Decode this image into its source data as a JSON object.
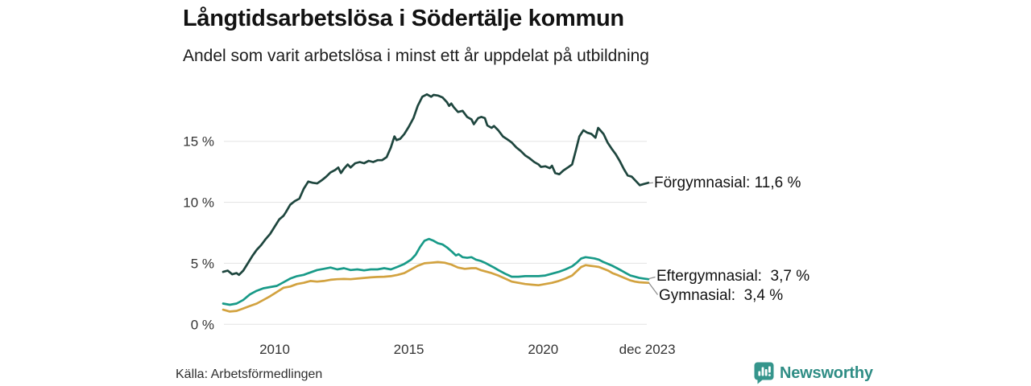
{
  "header": {
    "title": "Långtidsarbetslösa i Södertälje kommun",
    "subtitle": "Andel som varit arbetslösa i minst ett år uppdelat på utbildning"
  },
  "footer": {
    "source": "Källa: Arbetsförmedlingen",
    "brand": "Newsworthy",
    "brand_color": "#2f8d85",
    "brand_icon": "bar-chart-speech-bubble"
  },
  "chart_data": {
    "type": "line",
    "title": "Långtidsarbetslösa i Södertälje kommun",
    "subtitle": "Andel som varit arbetslösa i minst ett år uppdelat på utbildning",
    "x_unit": "decimal year (monthly samples)",
    "x_range": [
      2008.08,
      2023.92
    ],
    "y_unit": "percent",
    "ylim": [
      0,
      19.5
    ],
    "grid": "horizontal",
    "gridline_color": "#e3e3e3",
    "legend_position": "end-of-line-labels",
    "y_ticks": [
      {
        "value": 0,
        "label": "0 %"
      },
      {
        "value": 5,
        "label": "5 %"
      },
      {
        "value": 10,
        "label": "10 %"
      },
      {
        "value": 15,
        "label": "15 %"
      }
    ],
    "x_ticks": [
      {
        "value": 2010,
        "label": "2010"
      },
      {
        "value": 2015,
        "label": "2015"
      },
      {
        "value": 2020,
        "label": "2020"
      },
      {
        "value": 2023.88,
        "label": "dec 2023"
      }
    ],
    "series": [
      {
        "name": "Förgymnasial",
        "color": "#1e463e",
        "end_value": 11.6,
        "points": [
          [
            2008.08,
            4.3
          ],
          [
            2008.25,
            4.4
          ],
          [
            2008.42,
            4.1
          ],
          [
            2008.58,
            4.2
          ],
          [
            2008.67,
            4.05
          ],
          [
            2008.83,
            4.4
          ],
          [
            2009.0,
            5.0
          ],
          [
            2009.17,
            5.6
          ],
          [
            2009.33,
            6.1
          ],
          [
            2009.5,
            6.5
          ],
          [
            2009.67,
            7.0
          ],
          [
            2009.83,
            7.4
          ],
          [
            2010.0,
            8.0
          ],
          [
            2010.17,
            8.6
          ],
          [
            2010.33,
            8.9
          ],
          [
            2010.42,
            9.2
          ],
          [
            2010.58,
            9.8
          ],
          [
            2010.75,
            10.1
          ],
          [
            2010.92,
            10.3
          ],
          [
            2011.08,
            11.1
          ],
          [
            2011.25,
            11.7
          ],
          [
            2011.42,
            11.6
          ],
          [
            2011.58,
            11.55
          ],
          [
            2011.75,
            11.8
          ],
          [
            2011.92,
            12.1
          ],
          [
            2012.08,
            12.45
          ],
          [
            2012.25,
            12.65
          ],
          [
            2012.37,
            12.85
          ],
          [
            2012.47,
            12.4
          ],
          [
            2012.58,
            12.75
          ],
          [
            2012.72,
            13.1
          ],
          [
            2012.83,
            12.85
          ],
          [
            2013.0,
            13.2
          ],
          [
            2013.17,
            13.3
          ],
          [
            2013.33,
            13.2
          ],
          [
            2013.5,
            13.4
          ],
          [
            2013.67,
            13.3
          ],
          [
            2013.83,
            13.45
          ],
          [
            2014.0,
            13.45
          ],
          [
            2014.17,
            13.7
          ],
          [
            2014.33,
            14.5
          ],
          [
            2014.46,
            15.4
          ],
          [
            2014.54,
            15.1
          ],
          [
            2014.67,
            15.2
          ],
          [
            2014.83,
            15.6
          ],
          [
            2015.0,
            16.2
          ],
          [
            2015.17,
            16.9
          ],
          [
            2015.33,
            17.9
          ],
          [
            2015.5,
            18.65
          ],
          [
            2015.67,
            18.85
          ],
          [
            2015.83,
            18.65
          ],
          [
            2015.92,
            18.8
          ],
          [
            2016.08,
            18.75
          ],
          [
            2016.25,
            18.6
          ],
          [
            2016.42,
            18.2
          ],
          [
            2016.5,
            17.9
          ],
          [
            2016.58,
            18.1
          ],
          [
            2016.67,
            17.8
          ],
          [
            2016.83,
            17.4
          ],
          [
            2017.0,
            17.5
          ],
          [
            2017.17,
            17.0
          ],
          [
            2017.33,
            16.8
          ],
          [
            2017.42,
            16.4
          ],
          [
            2017.58,
            16.9
          ],
          [
            2017.7,
            17.0
          ],
          [
            2017.83,
            16.9
          ],
          [
            2017.92,
            16.3
          ],
          [
            2018.08,
            16.1
          ],
          [
            2018.17,
            16.25
          ],
          [
            2018.33,
            15.9
          ],
          [
            2018.5,
            15.4
          ],
          [
            2018.67,
            15.15
          ],
          [
            2018.83,
            14.9
          ],
          [
            2019.0,
            14.5
          ],
          [
            2019.17,
            14.2
          ],
          [
            2019.33,
            13.85
          ],
          [
            2019.5,
            13.6
          ],
          [
            2019.67,
            13.3
          ],
          [
            2019.83,
            13.1
          ],
          [
            2019.92,
            12.9
          ],
          [
            2020.08,
            12.95
          ],
          [
            2020.25,
            12.8
          ],
          [
            2020.33,
            13.0
          ],
          [
            2020.45,
            12.4
          ],
          [
            2020.6,
            12.3
          ],
          [
            2020.75,
            12.6
          ],
          [
            2020.92,
            12.85
          ],
          [
            2021.08,
            13.1
          ],
          [
            2021.2,
            14.1
          ],
          [
            2021.35,
            15.4
          ],
          [
            2021.5,
            15.9
          ],
          [
            2021.65,
            15.7
          ],
          [
            2021.8,
            15.6
          ],
          [
            2021.95,
            15.3
          ],
          [
            2022.05,
            16.1
          ],
          [
            2022.15,
            15.85
          ],
          [
            2022.25,
            15.6
          ],
          [
            2022.4,
            14.9
          ],
          [
            2022.55,
            14.4
          ],
          [
            2022.7,
            13.95
          ],
          [
            2022.85,
            13.4
          ],
          [
            2023.0,
            12.75
          ],
          [
            2023.15,
            12.2
          ],
          [
            2023.3,
            12.1
          ],
          [
            2023.45,
            11.75
          ],
          [
            2023.6,
            11.4
          ],
          [
            2023.75,
            11.5
          ],
          [
            2023.92,
            11.6
          ]
        ]
      },
      {
        "name": "Eftergymnasial",
        "color": "#189a88",
        "end_value": 3.7,
        "points": [
          [
            2008.08,
            1.7
          ],
          [
            2008.33,
            1.6
          ],
          [
            2008.58,
            1.7
          ],
          [
            2008.83,
            2.0
          ],
          [
            2009.08,
            2.45
          ],
          [
            2009.33,
            2.75
          ],
          [
            2009.58,
            2.95
          ],
          [
            2009.83,
            3.05
          ],
          [
            2010.08,
            3.15
          ],
          [
            2010.33,
            3.45
          ],
          [
            2010.58,
            3.75
          ],
          [
            2010.83,
            3.95
          ],
          [
            2011.08,
            4.05
          ],
          [
            2011.33,
            4.25
          ],
          [
            2011.58,
            4.45
          ],
          [
            2011.83,
            4.55
          ],
          [
            2012.08,
            4.65
          ],
          [
            2012.33,
            4.5
          ],
          [
            2012.58,
            4.6
          ],
          [
            2012.83,
            4.45
          ],
          [
            2013.08,
            4.5
          ],
          [
            2013.33,
            4.42
          ],
          [
            2013.58,
            4.5
          ],
          [
            2013.83,
            4.5
          ],
          [
            2014.08,
            4.6
          ],
          [
            2014.33,
            4.5
          ],
          [
            2014.58,
            4.72
          ],
          [
            2014.83,
            4.95
          ],
          [
            2015.08,
            5.3
          ],
          [
            2015.25,
            5.7
          ],
          [
            2015.42,
            6.35
          ],
          [
            2015.58,
            6.85
          ],
          [
            2015.75,
            7.0
          ],
          [
            2015.92,
            6.85
          ],
          [
            2016.08,
            6.65
          ],
          [
            2016.25,
            6.55
          ],
          [
            2016.42,
            6.3
          ],
          [
            2016.58,
            6.0
          ],
          [
            2016.75,
            5.65
          ],
          [
            2016.85,
            5.75
          ],
          [
            2017.0,
            5.5
          ],
          [
            2017.17,
            5.45
          ],
          [
            2017.33,
            5.5
          ],
          [
            2017.5,
            5.3
          ],
          [
            2017.67,
            5.2
          ],
          [
            2017.83,
            5.05
          ],
          [
            2018.0,
            4.85
          ],
          [
            2018.17,
            4.65
          ],
          [
            2018.33,
            4.45
          ],
          [
            2018.58,
            4.15
          ],
          [
            2018.83,
            3.9
          ],
          [
            2019.08,
            3.9
          ],
          [
            2019.33,
            3.95
          ],
          [
            2019.58,
            3.95
          ],
          [
            2019.83,
            3.95
          ],
          [
            2020.08,
            4.0
          ],
          [
            2020.33,
            4.15
          ],
          [
            2020.58,
            4.3
          ],
          [
            2020.83,
            4.5
          ],
          [
            2021.08,
            4.75
          ],
          [
            2021.25,
            5.05
          ],
          [
            2021.42,
            5.4
          ],
          [
            2021.58,
            5.5
          ],
          [
            2021.75,
            5.45
          ],
          [
            2021.92,
            5.4
          ],
          [
            2022.08,
            5.3
          ],
          [
            2022.25,
            5.1
          ],
          [
            2022.42,
            4.95
          ],
          [
            2022.58,
            4.8
          ],
          [
            2022.75,
            4.6
          ],
          [
            2022.92,
            4.4
          ],
          [
            2023.08,
            4.2
          ],
          [
            2023.25,
            4.0
          ],
          [
            2023.42,
            3.9
          ],
          [
            2023.58,
            3.8
          ],
          [
            2023.75,
            3.75
          ],
          [
            2023.92,
            3.7
          ]
        ]
      },
      {
        "name": "Gymnasial",
        "color": "#d2a23f",
        "end_value": 3.4,
        "points": [
          [
            2008.08,
            1.2
          ],
          [
            2008.33,
            1.05
          ],
          [
            2008.58,
            1.1
          ],
          [
            2008.83,
            1.3
          ],
          [
            2009.08,
            1.5
          ],
          [
            2009.33,
            1.7
          ],
          [
            2009.58,
            2.0
          ],
          [
            2009.83,
            2.3
          ],
          [
            2010.08,
            2.65
          ],
          [
            2010.33,
            3.0
          ],
          [
            2010.58,
            3.1
          ],
          [
            2010.83,
            3.3
          ],
          [
            2011.08,
            3.4
          ],
          [
            2011.33,
            3.55
          ],
          [
            2011.58,
            3.5
          ],
          [
            2011.83,
            3.55
          ],
          [
            2012.08,
            3.65
          ],
          [
            2012.33,
            3.7
          ],
          [
            2012.58,
            3.72
          ],
          [
            2012.83,
            3.7
          ],
          [
            2013.08,
            3.75
          ],
          [
            2013.33,
            3.8
          ],
          [
            2013.58,
            3.85
          ],
          [
            2013.83,
            3.88
          ],
          [
            2014.08,
            3.9
          ],
          [
            2014.33,
            3.95
          ],
          [
            2014.58,
            4.05
          ],
          [
            2014.83,
            4.2
          ],
          [
            2015.08,
            4.5
          ],
          [
            2015.33,
            4.8
          ],
          [
            2015.58,
            5.0
          ],
          [
            2015.83,
            5.05
          ],
          [
            2016.08,
            5.1
          ],
          [
            2016.33,
            5.05
          ],
          [
            2016.58,
            4.9
          ],
          [
            2016.83,
            4.65
          ],
          [
            2017.08,
            4.55
          ],
          [
            2017.33,
            4.6
          ],
          [
            2017.5,
            4.6
          ],
          [
            2017.67,
            4.45
          ],
          [
            2017.83,
            4.35
          ],
          [
            2018.08,
            4.2
          ],
          [
            2018.33,
            4.0
          ],
          [
            2018.58,
            3.75
          ],
          [
            2018.83,
            3.5
          ],
          [
            2019.08,
            3.4
          ],
          [
            2019.33,
            3.3
          ],
          [
            2019.58,
            3.25
          ],
          [
            2019.83,
            3.2
          ],
          [
            2020.08,
            3.3
          ],
          [
            2020.33,
            3.4
          ],
          [
            2020.58,
            3.55
          ],
          [
            2020.83,
            3.75
          ],
          [
            2021.08,
            4.0
          ],
          [
            2021.25,
            4.35
          ],
          [
            2021.42,
            4.7
          ],
          [
            2021.58,
            4.85
          ],
          [
            2021.75,
            4.8
          ],
          [
            2021.92,
            4.75
          ],
          [
            2022.08,
            4.7
          ],
          [
            2022.25,
            4.55
          ],
          [
            2022.42,
            4.4
          ],
          [
            2022.58,
            4.2
          ],
          [
            2022.75,
            4.05
          ],
          [
            2022.92,
            3.9
          ],
          [
            2023.08,
            3.75
          ],
          [
            2023.25,
            3.6
          ],
          [
            2023.42,
            3.5
          ],
          [
            2023.58,
            3.45
          ],
          [
            2023.75,
            3.42
          ],
          [
            2023.92,
            3.4
          ]
        ]
      }
    ],
    "annotations": [
      {
        "series": "Förgymnasial",
        "value": 11.6,
        "label": "Förgymnasial: 11,6 %"
      },
      {
        "series": "Eftergymnasial",
        "value": 3.7,
        "label": "Eftergymnasial:  3,7 %"
      },
      {
        "series": "Gymnasial",
        "value": 3.4,
        "label": "Gymnasial:  3,4 %"
      }
    ]
  }
}
